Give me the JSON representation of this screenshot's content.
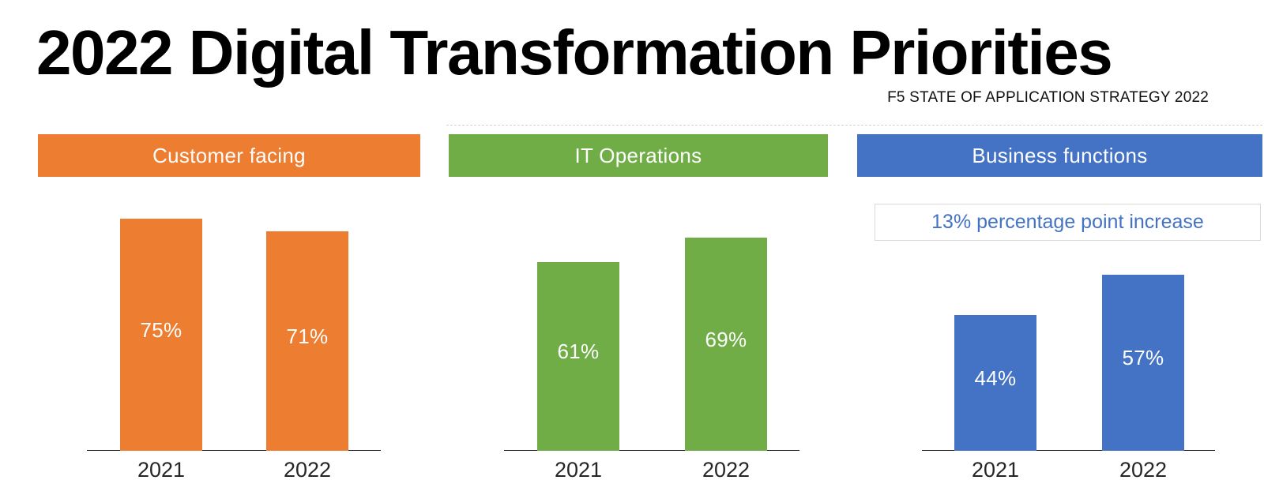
{
  "header": {
    "title": "2022 Digital Transformation Priorities",
    "subtitle": "F5 STATE OF APPLICATION STRATEGY 2022"
  },
  "chart_data": [
    {
      "type": "bar",
      "title": "Customer facing",
      "color": "#ED7D31",
      "categories": [
        "2021",
        "2022"
      ],
      "values": [
        75,
        71
      ],
      "unit": "%",
      "ylim": [
        0,
        100
      ],
      "grid": false,
      "legend": false
    },
    {
      "type": "bar",
      "title": "IT Operations",
      "color": "#70AD47",
      "categories": [
        "2021",
        "2022"
      ],
      "values": [
        61,
        69
      ],
      "unit": "%",
      "ylim": [
        0,
        100
      ],
      "grid": false,
      "legend": false
    },
    {
      "type": "bar",
      "title": "Business functions",
      "color": "#4472C4",
      "categories": [
        "2021",
        "2022"
      ],
      "values": [
        44,
        57
      ],
      "unit": "%",
      "ylim": [
        0,
        100
      ],
      "grid": false,
      "legend": false,
      "annotation": "13% percentage point increase"
    }
  ],
  "colors": {
    "axis": "#1a1a1a",
    "annotation_border": "#d9d9d9",
    "x_label": "#262626",
    "bar_value_text": "#ffffff"
  }
}
